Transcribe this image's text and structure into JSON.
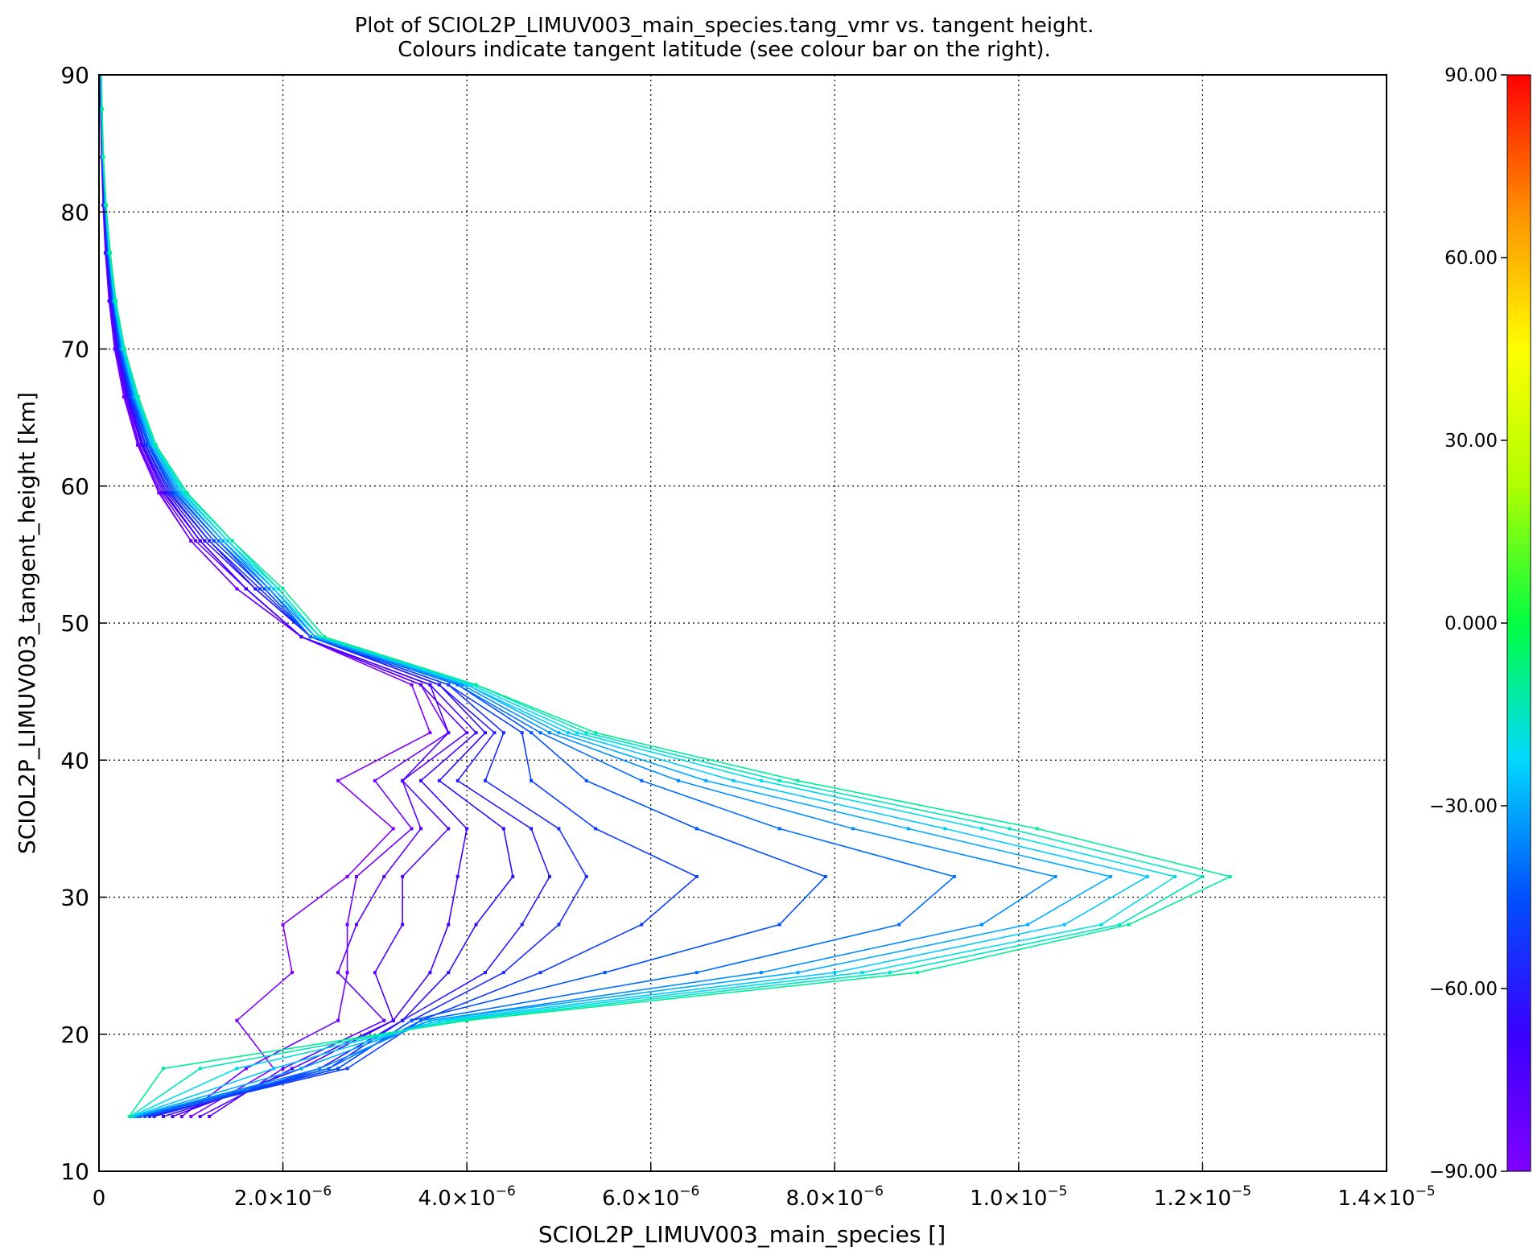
{
  "title_line1": "Plot of SCIOL2P_LIMUV003_main_species.tang_vmr vs. tangent height.",
  "title_line2": "Colours indicate tangent latitude (see colour bar on the right).",
  "chart_data": {
    "type": "line",
    "title": "Plot of SCIOL2P_LIMUV003_main_species.tang_vmr vs. tangent height.",
    "subtitle": "Colours indicate tangent latitude (see colour bar on the right).",
    "xlabel": "SCIOL2P_LIMUV003_main_species []",
    "ylabel": "SCIOL2P_LIMUV003_tangent_height [km]",
    "xlim": [
      0,
      1.4e-05
    ],
    "ylim": [
      10,
      90
    ],
    "grid": true,
    "x_ticks": [
      {
        "value": 0,
        "mant": "0",
        "exp": ""
      },
      {
        "value": 2e-06,
        "mant": "2.0×10",
        "exp": "−6"
      },
      {
        "value": 4e-06,
        "mant": "4.0×10",
        "exp": "−6"
      },
      {
        "value": 6e-06,
        "mant": "6.0×10",
        "exp": "−6"
      },
      {
        "value": 8e-06,
        "mant": "8.0×10",
        "exp": "−6"
      },
      {
        "value": 1e-05,
        "mant": "1.0×10",
        "exp": "−5"
      },
      {
        "value": 1.2e-05,
        "mant": "1.2×10",
        "exp": "−5"
      },
      {
        "value": 1.4e-05,
        "mant": "1.4×10",
        "exp": "−5"
      }
    ],
    "y_ticks": [
      10,
      20,
      30,
      40,
      50,
      60,
      70,
      80,
      90
    ],
    "heights": [
      14,
      17.5,
      21,
      24.5,
      28,
      31.5,
      35,
      38.5,
      42,
      45.5,
      49,
      52.5,
      56,
      59.5,
      63,
      66.5,
      70,
      73.5,
      77,
      80.5,
      84,
      87.5,
      91
    ],
    "series": [
      {
        "lat": -90,
        "values": [
          1e-06,
          1.9e-06,
          1.5e-06,
          2.1e-06,
          2e-06,
          2.7e-06,
          3.2e-06,
          2.6e-06,
          3.6e-06,
          3.4e-06,
          2.2e-06,
          1.5e-06,
          1e-06,
          6.5e-07,
          4.2e-07,
          2.7e-07,
          1.7e-07,
          1.1e-07,
          7e-08,
          4.5e-08,
          2.9e-08,
          1.8e-08,
          1.2e-08
        ]
      },
      {
        "lat": -85,
        "values": [
          9e-07,
          1.6e-06,
          2.6e-06,
          2.7e-06,
          2.7e-06,
          2.8e-06,
          3.4e-06,
          3e-06,
          3.8e-06,
          3.5e-06,
          2.2e-06,
          1.5e-06,
          1e-06,
          6.6e-07,
          4.3e-07,
          2.8e-07,
          1.8e-07,
          1.1e-07,
          7.3e-08,
          4.7e-08,
          3e-08,
          1.9e-08,
          1.2e-08
        ]
      },
      {
        "lat": -80,
        "values": [
          1.2e-06,
          2e-06,
          3.1e-06,
          2.6e-06,
          2.8e-06,
          3.1e-06,
          3.5e-06,
          3.3e-06,
          4e-06,
          3.5e-06,
          2.2e-06,
          1.6e-06,
          1.05e-06,
          6.8e-07,
          4.4e-07,
          2.9e-07,
          1.8e-07,
          1.2e-07,
          7.6e-08,
          4.9e-08,
          3.1e-08,
          2e-08,
          1.3e-08
        ]
      },
      {
        "lat": -75,
        "values": [
          1.1e-06,
          2.1e-06,
          3.2e-06,
          3e-06,
          3.3e-06,
          3.3e-06,
          3.8e-06,
          3.3e-06,
          3.8e-06,
          3.6e-06,
          2.2e-06,
          1.6e-06,
          1.1e-06,
          7e-07,
          4.6e-07,
          3e-07,
          1.9e-07,
          1.2e-07,
          8e-08,
          5.1e-08,
          3.3e-08,
          2.1e-08,
          1.3e-08
        ]
      },
      {
        "lat": -70,
        "values": [
          8e-07,
          2.2e-06,
          3.2e-06,
          3.6e-06,
          3.8e-06,
          3.9e-06,
          4e-06,
          3.5e-06,
          4.1e-06,
          3.6e-06,
          2.2e-06,
          1.6e-06,
          1.1e-06,
          7.2e-07,
          4.7e-07,
          3.1e-07,
          2e-07,
          1.3e-07,
          8.3e-08,
          5.4e-08,
          3.5e-08,
          2.2e-08,
          1.4e-08
        ]
      },
      {
        "lat": -65,
        "values": [
          7e-07,
          2.4e-06,
          3.3e-06,
          3.8e-06,
          4.1e-06,
          4.5e-06,
          4.4e-06,
          3.7e-06,
          4.2e-06,
          3.7e-06,
          2.3e-06,
          1.7e-06,
          1.15e-06,
          7.4e-07,
          4.8e-07,
          3.2e-07,
          2.1e-07,
          1.3e-07,
          8.6e-08,
          5.6e-08,
          3.6e-08,
          2.3e-08,
          1.5e-08
        ]
      },
      {
        "lat": -60,
        "values": [
          6e-07,
          2.5e-06,
          3.3e-06,
          4.2e-06,
          4.6e-06,
          4.9e-06,
          4.7e-06,
          3.9e-06,
          4.3e-06,
          3.7e-06,
          2.3e-06,
          1.7e-06,
          1.2e-06,
          7.6e-07,
          5e-07,
          3.3e-07,
          2.1e-07,
          1.4e-07,
          9e-08,
          5.8e-08,
          3.8e-08,
          2.4e-08,
          1.5e-08
        ]
      },
      {
        "lat": -55,
        "values": [
          5.5e-07,
          2.6e-06,
          3.4e-06,
          4.4e-06,
          5e-06,
          5.3e-06,
          5e-06,
          4.2e-06,
          4.4e-06,
          3.8e-06,
          2.3e-06,
          1.75e-06,
          1.2e-06,
          7.8e-07,
          5.1e-07,
          3.4e-07,
          2.2e-07,
          1.4e-07,
          9.3e-08,
          6e-08,
          3.9e-08,
          2.5e-08,
          1.6e-08
        ]
      },
      {
        "lat": -50,
        "values": [
          5e-07,
          2.7e-06,
          3.5e-06,
          4.8e-06,
          5.9e-06,
          6.5e-06,
          5.4e-06,
          4.7e-06,
          4.6e-06,
          3.8e-06,
          2.3e-06,
          1.8e-06,
          1.25e-06,
          8e-07,
          5.3e-07,
          3.5e-07,
          2.3e-07,
          1.5e-07,
          9.6e-08,
          6.2e-08,
          4e-08,
          2.6e-08,
          1.6e-08
        ]
      },
      {
        "lat": -45,
        "values": [
          4.5e-07,
          2.6e-06,
          3.4e-06,
          5.5e-06,
          7.4e-06,
          7.9e-06,
          6.5e-06,
          5.3e-06,
          4.7e-06,
          3.9e-06,
          2.3e-06,
          1.8e-06,
          1.3e-06,
          8.2e-07,
          5.4e-07,
          3.6e-07,
          2.3e-07,
          1.5e-07,
          1e-07,
          6.4e-08,
          4.1e-08,
          2.7e-08,
          1.7e-08
        ]
      },
      {
        "lat": -40,
        "values": [
          4.2e-07,
          2.5e-06,
          3.5e-06,
          6.5e-06,
          8.7e-06,
          9.3e-06,
          7.4e-06,
          5.9e-06,
          4.8e-06,
          3.9e-06,
          2.3e-06,
          1.85e-06,
          1.3e-06,
          8.4e-07,
          5.5e-07,
          3.7e-07,
          2.4e-07,
          1.6e-07,
          1.03e-07,
          6.6e-08,
          4.2e-08,
          2.8e-08,
          1.7e-08
        ]
      },
      {
        "lat": -35,
        "values": [
          4e-07,
          2.4e-06,
          3.6e-06,
          7.2e-06,
          9.6e-06,
          1.04e-05,
          8.2e-06,
          6.3e-06,
          4.9e-06,
          3.95e-06,
          2.35e-06,
          1.85e-06,
          1.35e-06,
          8.6e-07,
          5.6e-07,
          3.8e-07,
          2.5e-07,
          1.6e-07,
          1.06e-07,
          6.8e-08,
          4.3e-08,
          2.9e-08,
          1.8e-08
        ]
      },
      {
        "lat": -30,
        "values": [
          3.8e-07,
          2.2e-06,
          3.6e-06,
          7.6e-06,
          1.01e-05,
          1.1e-05,
          8.8e-06,
          6.6e-06,
          5e-06,
          4e-06,
          2.35e-06,
          1.9e-06,
          1.35e-06,
          8.8e-07,
          5.8e-07,
          3.9e-07,
          2.5e-07,
          1.65e-07,
          1.1e-07,
          7e-08,
          4.4e-08,
          3e-08,
          1.8e-08
        ]
      },
      {
        "lat": -25,
        "values": [
          3.6e-07,
          1.9e-06,
          3.7e-06,
          8e-06,
          1.05e-05,
          1.14e-05,
          9.2e-06,
          6.9e-06,
          5.1e-06,
          4e-06,
          2.4e-06,
          1.9e-06,
          1.4e-06,
          9e-07,
          5.9e-07,
          4e-07,
          2.6e-07,
          1.7e-07,
          1.13e-07,
          7.2e-08,
          4.5e-08,
          3.1e-08,
          1.9e-08
        ]
      },
      {
        "lat": -20,
        "values": [
          3.5e-07,
          1.5e-06,
          3.8e-06,
          8.3e-06,
          1.09e-05,
          1.17e-05,
          9.6e-06,
          7.2e-06,
          5.2e-06,
          4.05e-06,
          2.4e-06,
          1.95e-06,
          1.4e-06,
          9.2e-07,
          6e-07,
          4.1e-07,
          2.7e-07,
          1.75e-07,
          1.16e-07,
          7.4e-08,
          4.6e-08,
          3.2e-08,
          1.9e-08
        ]
      },
      {
        "lat": -15,
        "values": [
          3.4e-07,
          1.1e-06,
          3.9e-06,
          8.6e-06,
          1.11e-05,
          1.2e-05,
          9.9e-06,
          7.4e-06,
          5.3e-06,
          4.1e-06,
          2.4e-06,
          1.95e-06,
          1.45e-06,
          9.4e-07,
          6.1e-07,
          4.2e-07,
          2.8e-07,
          1.8e-07,
          1.2e-07,
          7.6e-08,
          4.7e-08,
          3.3e-08,
          2e-08
        ]
      },
      {
        "lat": -10,
        "values": [
          3.3e-07,
          7e-07,
          4e-06,
          8.9e-06,
          1.12e-05,
          1.23e-05,
          1.02e-05,
          7.6e-06,
          5.4e-06,
          4.1e-06,
          2.45e-06,
          2e-06,
          1.45e-06,
          9.6e-07,
          6.2e-07,
          4.3e-07,
          2.8e-07,
          1.85e-07,
          1.23e-07,
          7.8e-08,
          4.8e-08,
          3.4e-08,
          2e-08
        ]
      }
    ],
    "colorbar": {
      "label_for": "tangent latitude",
      "min": -90,
      "max": 90,
      "tick_values": [
        90,
        60,
        30,
        0,
        -30,
        -60,
        -90
      ],
      "tick_labels": [
        "90.00",
        "60.00",
        "30.00",
        "0.000",
        "−30.00",
        "−60.00",
        "−90.00"
      ],
      "colors": [
        "#7f00ff",
        "#3a00ff",
        "#0050ff",
        "#00d8ff",
        "#00ff40",
        "#b0ff00",
        "#ffff00",
        "#ff9000",
        "#ff0000"
      ]
    }
  }
}
